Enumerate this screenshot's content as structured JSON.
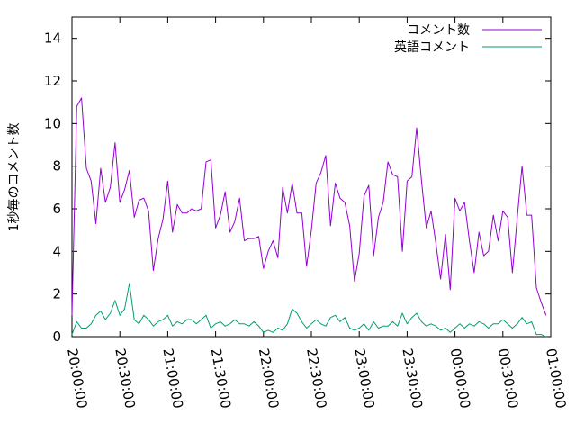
{
  "chart_data": {
    "type": "line",
    "ylabel": "1秒毎のコメント数",
    "xlabel": "",
    "ylim": [
      0,
      15
    ],
    "yticks": [
      0,
      2,
      4,
      6,
      8,
      10,
      12,
      14
    ],
    "xlim": [
      "20:00:00",
      "01:00:00"
    ],
    "xticks": [
      "20:00:00",
      "20:30:00",
      "21:00:00",
      "21:30:00",
      "22:00:00",
      "22:30:00",
      "23:00:00",
      "23:30:00",
      "00:00:00",
      "00:30:00",
      "01:00:00"
    ],
    "x_interval_minutes": 3,
    "grid": false,
    "legend_position": "top-right",
    "series": [
      {
        "name": "コメント数",
        "color": "#9400d3",
        "values": [
          1.0,
          10.8,
          11.2,
          7.9,
          7.3,
          5.3,
          7.9,
          6.3,
          7.0,
          9.1,
          6.3,
          6.9,
          7.8,
          5.6,
          6.4,
          6.5,
          5.9,
          3.1,
          4.6,
          5.5,
          7.3,
          4.9,
          6.2,
          5.8,
          5.8,
          6.0,
          5.9,
          6.0,
          8.2,
          8.3,
          5.1,
          5.7,
          6.8,
          4.9,
          5.4,
          6.5,
          4.5,
          4.6,
          4.6,
          4.7,
          3.2,
          4.0,
          4.5,
          3.7,
          7.0,
          5.8,
          7.2,
          5.8,
          5.8,
          3.3,
          5.0,
          7.2,
          7.7,
          8.5,
          5.2,
          7.2,
          6.5,
          6.3,
          5.2,
          2.6,
          3.9,
          6.6,
          7.1,
          3.8,
          5.6,
          6.3,
          8.2,
          7.6,
          7.5,
          4.0,
          7.3,
          7.5,
          9.8,
          7.3,
          5.1,
          5.9,
          4.4,
          2.7,
          4.8,
          2.2,
          6.5,
          5.9,
          6.3,
          4.5,
          3.0,
          4.9,
          3.8,
          4.0,
          5.7,
          4.5,
          5.9,
          5.6,
          3.0,
          5.6,
          8.0,
          5.7,
          5.7,
          2.3,
          1.6,
          1.0
        ]
      },
      {
        "name": "英語コメント",
        "color": "#009e73",
        "values": [
          0.1,
          0.7,
          0.4,
          0.4,
          0.6,
          1.0,
          1.2,
          0.8,
          1.1,
          1.7,
          1.0,
          1.3,
          2.5,
          0.8,
          0.6,
          1.0,
          0.8,
          0.5,
          0.7,
          0.8,
          1.0,
          0.5,
          0.7,
          0.6,
          0.8,
          0.8,
          0.6,
          0.8,
          1.0,
          0.4,
          0.6,
          0.7,
          0.5,
          0.6,
          0.8,
          0.6,
          0.6,
          0.5,
          0.7,
          0.5,
          0.2,
          0.3,
          0.2,
          0.4,
          0.3,
          0.6,
          1.3,
          1.1,
          0.7,
          0.4,
          0.6,
          0.8,
          0.6,
          0.5,
          0.9,
          1.0,
          0.7,
          0.9,
          0.4,
          0.3,
          0.4,
          0.6,
          0.3,
          0.7,
          0.4,
          0.5,
          0.5,
          0.7,
          0.5,
          1.1,
          0.6,
          0.9,
          1.1,
          0.7,
          0.5,
          0.6,
          0.5,
          0.3,
          0.4,
          0.2,
          0.4,
          0.6,
          0.4,
          0.6,
          0.5,
          0.7,
          0.6,
          0.4,
          0.6,
          0.6,
          0.8,
          0.6,
          0.4,
          0.6,
          0.9,
          0.6,
          0.7,
          0.1,
          0.1,
          0.0
        ]
      }
    ]
  }
}
